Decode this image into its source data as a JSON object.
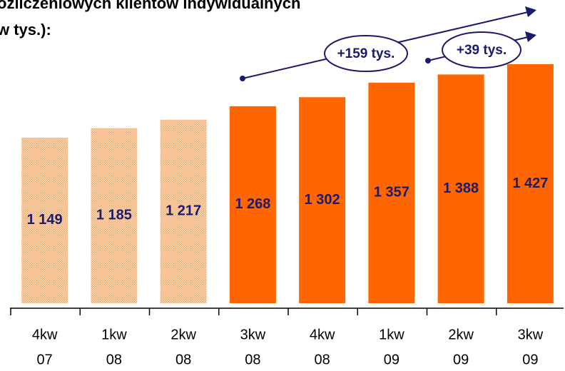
{
  "chart_data": {
    "type": "bar",
    "title": [
      "ozliczeniowych klientów indywidualnych",
      "w tys.):"
    ],
    "categories": [
      [
        "4kw",
        "07"
      ],
      [
        "1kw",
        "08"
      ],
      [
        "2kw",
        "08"
      ],
      [
        "3kw",
        "08"
      ],
      [
        "4kw",
        "08"
      ],
      [
        "1kw",
        "09"
      ],
      [
        "2kw",
        "09"
      ],
      [
        "3kw",
        "09"
      ]
    ],
    "values": [
      1149,
      1185,
      1217,
      1268,
      1302,
      1357,
      1388,
      1427
    ],
    "value_labels": [
      "1 149",
      "1 185",
      "1 217",
      "1 268",
      "1 302",
      "1 357",
      "1 388",
      "1 427"
    ],
    "colors": [
      "#f7c79a",
      "#f7c79a",
      "#f7c79a",
      "#ff6600",
      "#ff6600",
      "#ff6600",
      "#ff6600",
      "#ff6600"
    ],
    "hatched": [
      true,
      true,
      true,
      false,
      false,
      false,
      false,
      false
    ],
    "ylim": [
      522,
      1562
    ],
    "annotations": [
      "+159 tys.",
      "+39 tys."
    ]
  }
}
